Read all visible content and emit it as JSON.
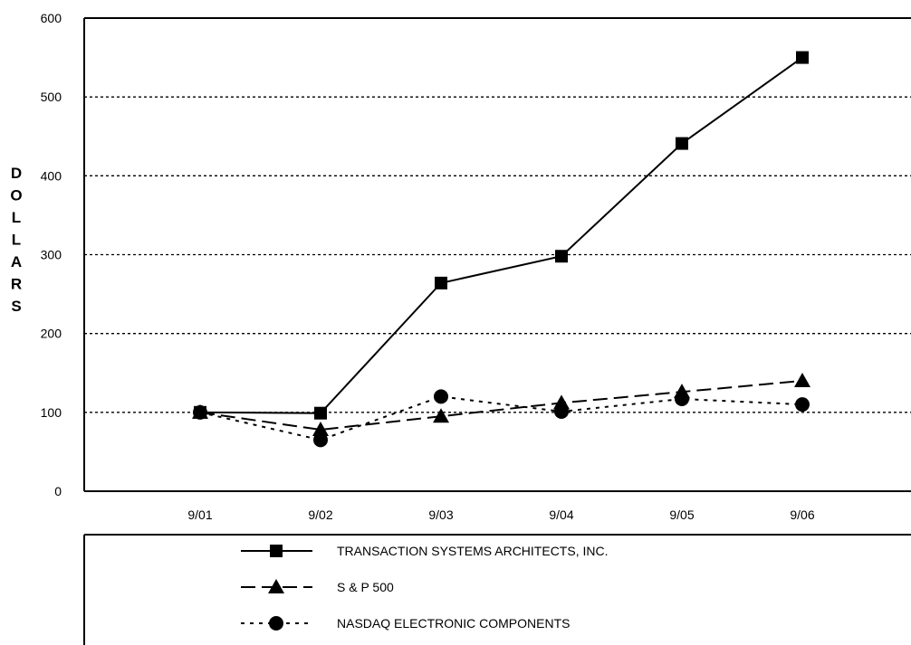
{
  "chart_data": {
    "type": "line",
    "title": "",
    "xlabel": "",
    "ylabel": "DOLLARS",
    "categories": [
      "9/01",
      "9/02",
      "9/03",
      "9/04",
      "9/05",
      "9/06"
    ],
    "ylim": [
      0,
      600
    ],
    "yticks": [
      0,
      100,
      200,
      300,
      400,
      500,
      600
    ],
    "grid": "horizontal dotted",
    "legend_position": "bottom",
    "series": [
      {
        "name": "TRANSACTION SYSTEMS ARCHITECTS, INC.",
        "values": [
          100,
          99,
          264,
          298,
          441,
          550
        ],
        "marker": "square",
        "line_style": "solid",
        "color": "#000000"
      },
      {
        "name": "S & P 500",
        "values": [
          100,
          78,
          95,
          112,
          126,
          140
        ],
        "marker": "triangle",
        "line_style": "dashed",
        "color": "#000000"
      },
      {
        "name": "NASDAQ ELECTRONIC COMPONENTS",
        "values": [
          100,
          65,
          120,
          101,
          117,
          110
        ],
        "marker": "circle",
        "line_style": "dotted",
        "color": "#000000"
      }
    ]
  }
}
